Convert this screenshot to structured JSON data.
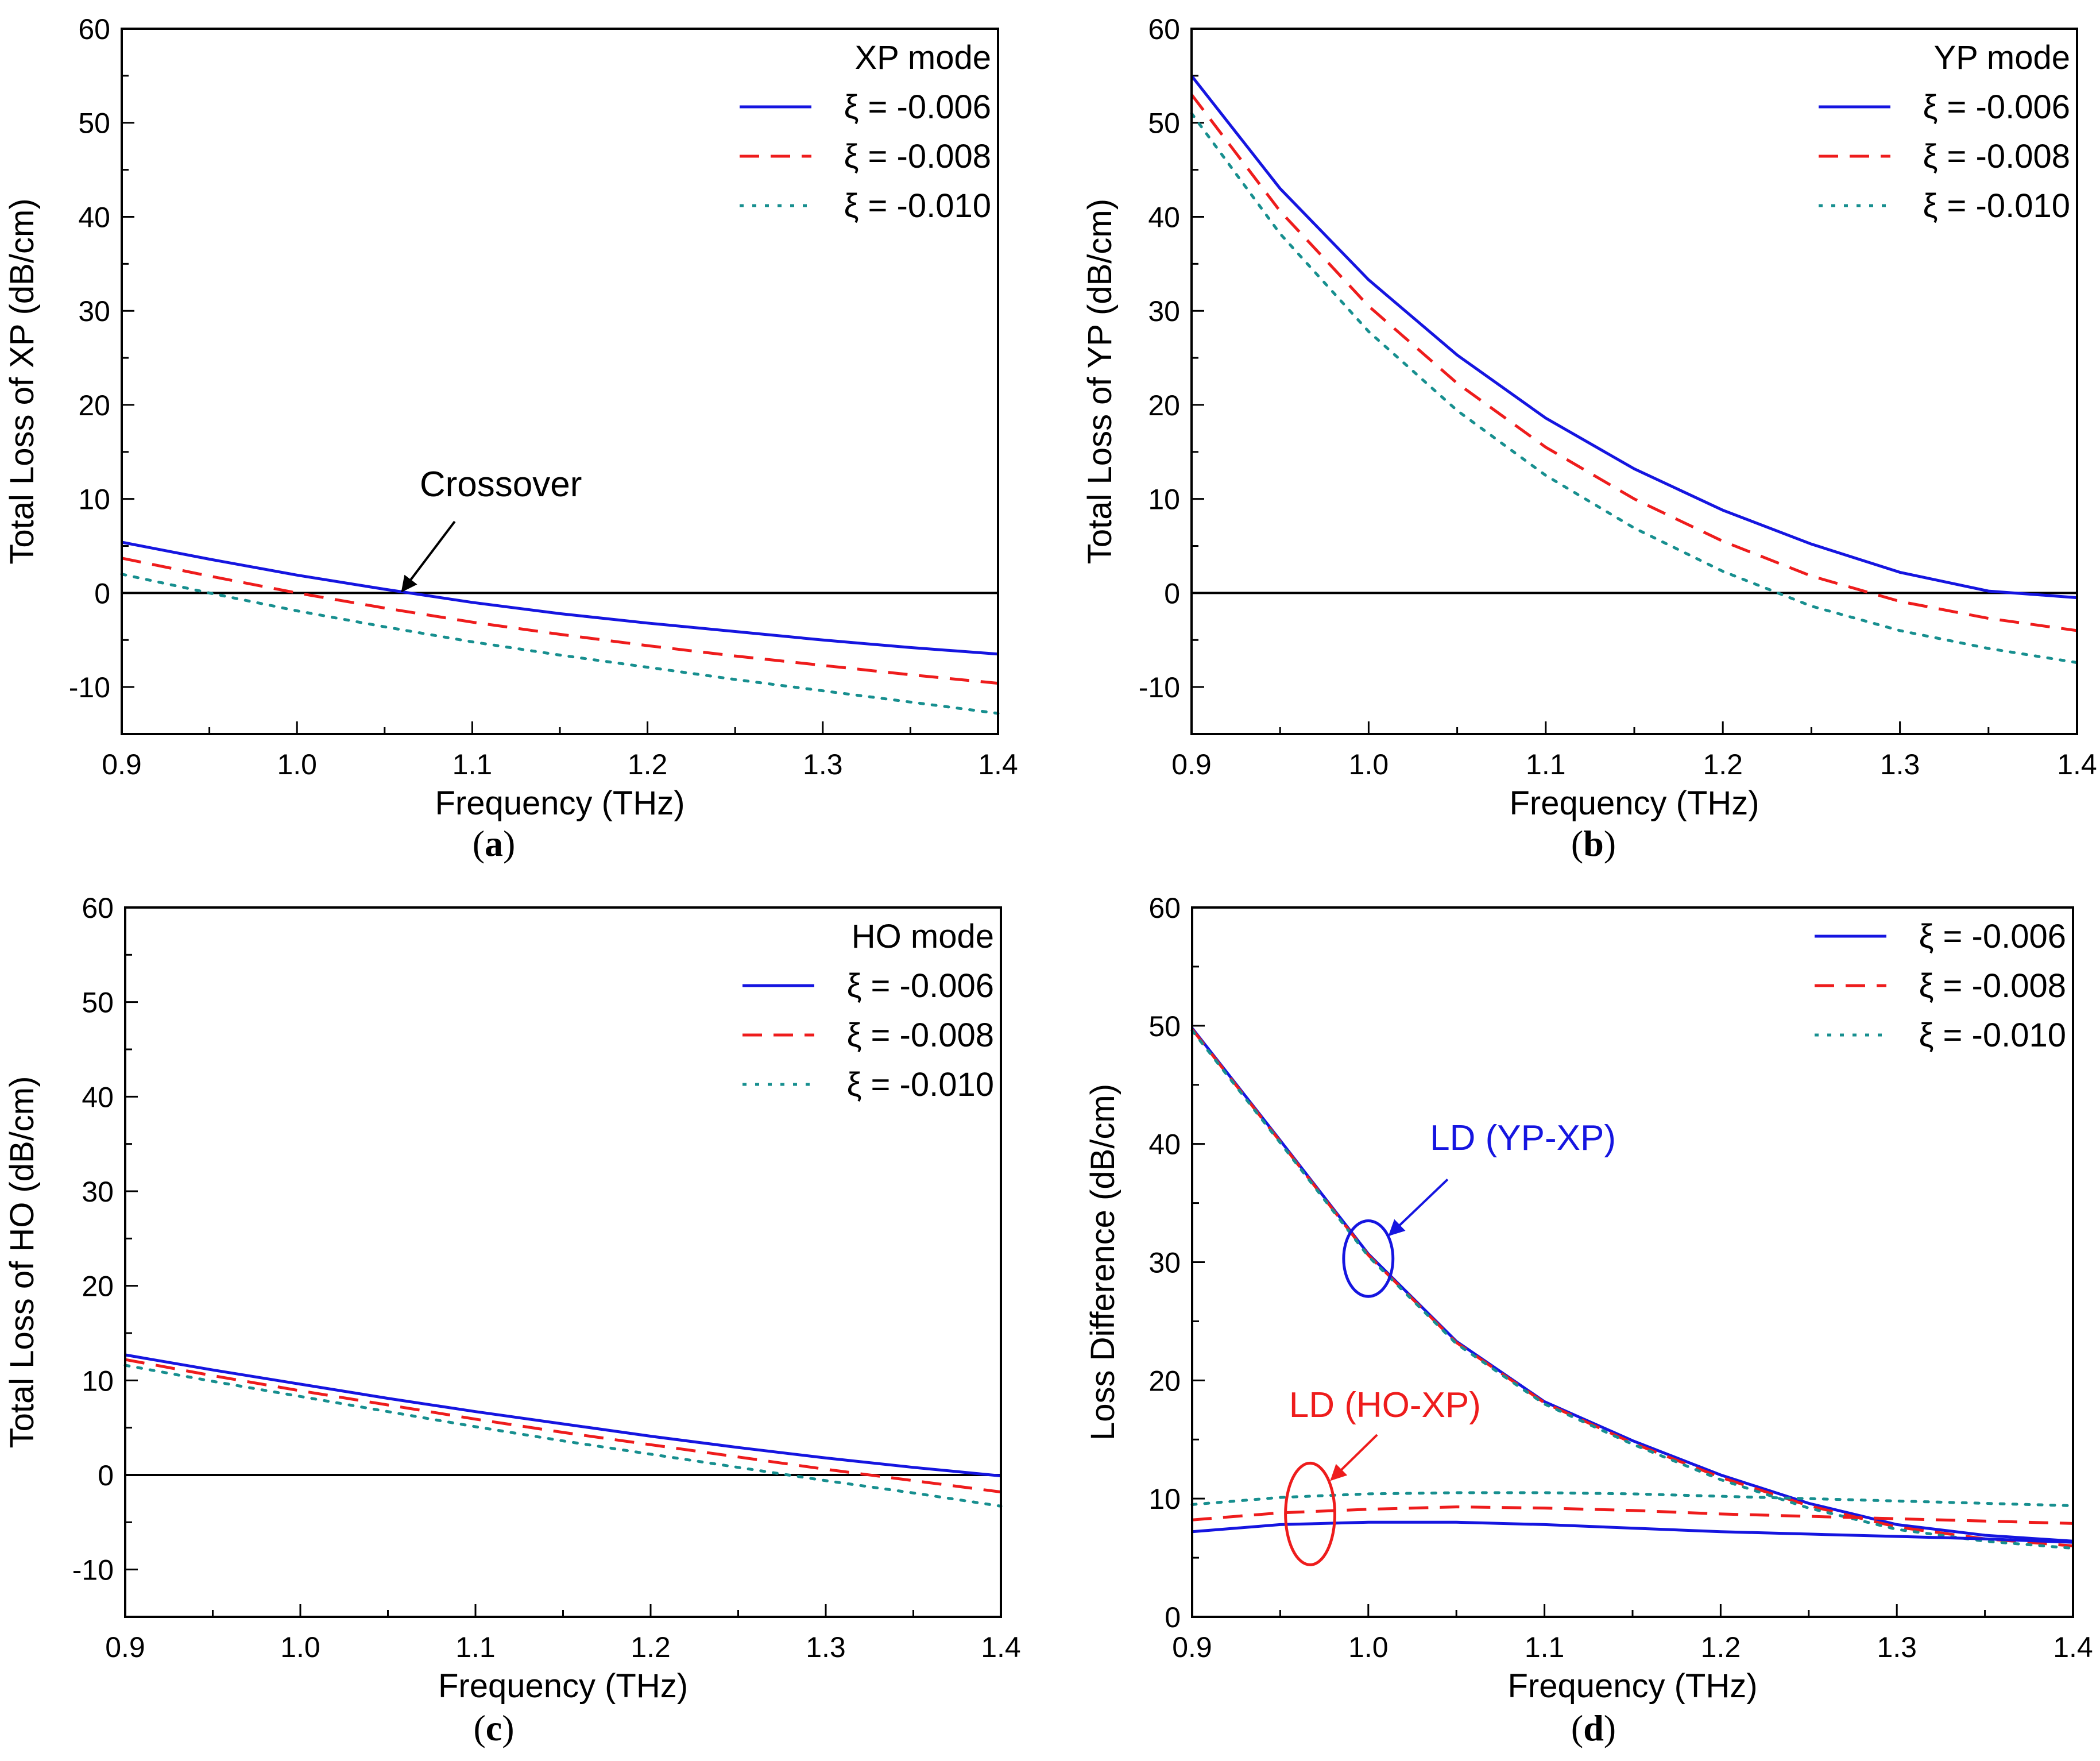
{
  "colors": {
    "s006": "#1515e0",
    "s008": "#ee1c1c",
    "s010": "#178f8f",
    "axis": "#000000",
    "annotation_blue": "#1515e0",
    "annotation_red": "#ee1c1c"
  },
  "chart_data": [
    {
      "panel": "(a)",
      "panel_letter": "a",
      "type": "line",
      "xlabel": "Frequency (THz)",
      "ylabel": "Total Loss of XP (dB/cm)",
      "xlim": [
        0.9,
        1.4
      ],
      "ylim": [
        -15,
        60
      ],
      "xticks": [
        0.9,
        1.0,
        1.1,
        1.2,
        1.3,
        1.4
      ],
      "xticklabels": [
        "0.9",
        "1.0",
        "1.1",
        "1.2",
        "1.3",
        "1.4"
      ],
      "yticks": [
        -10,
        0,
        10,
        20,
        30,
        40,
        50,
        60
      ],
      "yticklabels": [
        "-10",
        "0",
        "10",
        "20",
        "30",
        "40",
        "50",
        "60"
      ],
      "legend_title": "XP mode",
      "legend_position": "top-right",
      "zero_line": true,
      "x": [
        0.9,
        0.95,
        1.0,
        1.05,
        1.1,
        1.15,
        1.2,
        1.25,
        1.3,
        1.35,
        1.4
      ],
      "series": [
        {
          "name": "ξ = -0.006",
          "style": "solid",
          "values": [
            5.4,
            3.6,
            1.9,
            0.4,
            -1.0,
            -2.2,
            -3.2,
            -4.1,
            -5.0,
            -5.8,
            -6.5
          ]
        },
        {
          "name": "ξ = -0.008",
          "style": "dashed",
          "values": [
            3.7,
            1.8,
            0.0,
            -1.6,
            -3.1,
            -4.4,
            -5.6,
            -6.7,
            -7.7,
            -8.7,
            -9.6
          ]
        },
        {
          "name": "ξ = -0.010",
          "style": "dotted",
          "values": [
            2.0,
            0.0,
            -1.9,
            -3.6,
            -5.2,
            -6.6,
            -7.9,
            -9.2,
            -10.4,
            -11.6,
            -12.8
          ]
        }
      ],
      "annotations": [
        {
          "text": "Crossover",
          "x": 1.07,
          "y": 10.3,
          "arrow_to": [
            1.06,
            0.2
          ],
          "arrow_from": [
            1.09,
            7.6
          ]
        }
      ]
    },
    {
      "panel": "(b)",
      "panel_letter": "b",
      "type": "line",
      "xlabel": "Frequency (THz)",
      "ylabel": "Total Loss of YP (dB/cm)",
      "xlim": [
        0.9,
        1.4
      ],
      "ylim": [
        -15,
        60
      ],
      "xticks": [
        0.9,
        1.0,
        1.1,
        1.2,
        1.3,
        1.4
      ],
      "xticklabels": [
        "0.9",
        "1.0",
        "1.1",
        "1.2",
        "1.3",
        "1.4"
      ],
      "yticks": [
        -10,
        0,
        10,
        20,
        30,
        40,
        50,
        60
      ],
      "yticklabels": [
        "-10",
        "0",
        "10",
        "20",
        "30",
        "40",
        "50",
        "60"
      ],
      "legend_title": "YP mode",
      "legend_position": "top-right",
      "zero_line": true,
      "x": [
        0.9,
        0.95,
        1.0,
        1.05,
        1.1,
        1.15,
        1.2,
        1.25,
        1.3,
        1.35,
        1.4
      ],
      "series": [
        {
          "name": "ξ = -0.006",
          "style": "solid",
          "values": [
            55.0,
            43.0,
            33.3,
            25.3,
            18.6,
            13.2,
            8.8,
            5.2,
            2.2,
            0.2,
            -0.5
          ]
        },
        {
          "name": "ξ = -0.008",
          "style": "dashed",
          "values": [
            53.0,
            40.6,
            30.5,
            22.3,
            15.5,
            10.0,
            5.5,
            1.8,
            -0.9,
            -2.7,
            -4.0
          ]
        },
        {
          "name": "ξ = -0.010",
          "style": "dotted",
          "values": [
            51.0,
            38.2,
            27.8,
            19.4,
            12.5,
            6.9,
            2.3,
            -1.4,
            -4.0,
            -5.9,
            -7.4
          ]
        }
      ]
    },
    {
      "panel": "(c)",
      "panel_letter": "c",
      "type": "line",
      "xlabel": "Frequency (THz)",
      "ylabel": "Total Loss of HO (dB/cm)",
      "xlim": [
        0.9,
        1.4
      ],
      "ylim": [
        -15,
        60
      ],
      "xticks": [
        0.9,
        1.0,
        1.1,
        1.2,
        1.3,
        1.4
      ],
      "xticklabels": [
        "0.9",
        "1.0",
        "1.1",
        "1.2",
        "1.3",
        "1.4"
      ],
      "yticks": [
        -10,
        0,
        10,
        20,
        30,
        40,
        50,
        60
      ],
      "yticklabels": [
        "-10",
        "0",
        "10",
        "20",
        "30",
        "40",
        "50",
        "60"
      ],
      "legend_title": "HO mode",
      "legend_position": "top-right",
      "zero_line": true,
      "x": [
        0.9,
        0.95,
        1.0,
        1.05,
        1.1,
        1.15,
        1.2,
        1.25,
        1.3,
        1.35,
        1.4
      ],
      "series": [
        {
          "name": "ξ = -0.006",
          "style": "solid",
          "values": [
            12.7,
            11.1,
            9.6,
            8.1,
            6.7,
            5.4,
            4.1,
            2.9,
            1.8,
            0.8,
            -0.1
          ]
        },
        {
          "name": "ξ = -0.008",
          "style": "dashed",
          "values": [
            12.2,
            10.5,
            8.9,
            7.4,
            5.9,
            4.5,
            3.2,
            1.9,
            0.6,
            -0.6,
            -1.8
          ]
        },
        {
          "name": "ξ = -0.010",
          "style": "dotted",
          "values": [
            11.6,
            9.9,
            8.3,
            6.7,
            5.1,
            3.6,
            2.2,
            0.8,
            -0.6,
            -1.9,
            -3.3
          ]
        }
      ]
    },
    {
      "panel": "(d)",
      "panel_letter": "d",
      "type": "line",
      "xlabel": "Frequency (THz)",
      "ylabel": "Loss Difference (dB/cm)",
      "xlim": [
        0.9,
        1.4
      ],
      "ylim": [
        0,
        60
      ],
      "xticks": [
        0.9,
        1.0,
        1.1,
        1.2,
        1.3,
        1.4
      ],
      "xticklabels": [
        "0.9",
        "1.0",
        "1.1",
        "1.2",
        "1.3",
        "1.4"
      ],
      "yticks": [
        0,
        10,
        20,
        30,
        40,
        50,
        60
      ],
      "yticklabels": [
        "0",
        "10",
        "20",
        "30",
        "40",
        "50",
        "60"
      ],
      "legend_title": "",
      "legend_position": "top-right",
      "zero_line": false,
      "x": [
        0.9,
        0.95,
        1.0,
        1.05,
        1.1,
        1.15,
        1.2,
        1.25,
        1.3,
        1.35,
        1.4
      ],
      "series": [
        {
          "name": "ξ = -0.006",
          "style": "solid",
          "values": [
            49.8,
            40.3,
            30.7,
            23.3,
            18.2,
            14.9,
            12.0,
            9.6,
            7.8,
            6.9,
            6.4
          ]
        },
        {
          "name": "ξ = -0.008",
          "style": "dashed",
          "values": [
            49.7,
            40.2,
            30.6,
            23.2,
            18.1,
            14.7,
            11.8,
            9.4,
            7.6,
            6.6,
            6.0
          ]
        },
        {
          "name": "ξ = -0.010",
          "style": "dotted",
          "values": [
            49.6,
            40.1,
            30.5,
            23.1,
            18.0,
            14.6,
            11.6,
            9.2,
            7.4,
            6.4,
            5.8
          ]
        }
      ],
      "secondary_series": [
        {
          "name": "HO-XP ξ = -0.006",
          "style": "solid",
          "values": [
            7.2,
            7.8,
            8.0,
            8.0,
            7.8,
            7.5,
            7.2,
            7.0,
            6.8,
            6.6,
            6.3
          ]
        },
        {
          "name": "HO-XP ξ = -0.008",
          "style": "dashed",
          "values": [
            8.2,
            8.8,
            9.1,
            9.3,
            9.2,
            9.0,
            8.7,
            8.5,
            8.3,
            8.1,
            7.9
          ]
        },
        {
          "name": "HO-XP ξ = -0.010",
          "style": "dotted",
          "values": [
            9.5,
            10.1,
            10.4,
            10.5,
            10.5,
            10.4,
            10.2,
            10.0,
            9.8,
            9.6,
            9.4
          ]
        }
      ],
      "annotations": [
        {
          "text": "LD (YP-XP)",
          "color": "blue",
          "x": 1.035,
          "y": 39.5,
          "ellipse_center": [
            1.0,
            30.3
          ],
          "ellipse_rx": 0.014,
          "ellipse_ry": 3.2,
          "arrow_from": [
            1.045,
            37.0
          ],
          "arrow_to": [
            1.012,
            32.3
          ]
        },
        {
          "text": "LD (HO-XP)",
          "color": "red",
          "x": 0.955,
          "y": 16.9,
          "ellipse_center": [
            0.967,
            8.7
          ],
          "ellipse_rx": 0.014,
          "ellipse_ry": 4.3,
          "arrow_from": [
            1.005,
            15.4
          ],
          "arrow_to": [
            0.979,
            11.6
          ]
        }
      ]
    }
  ]
}
